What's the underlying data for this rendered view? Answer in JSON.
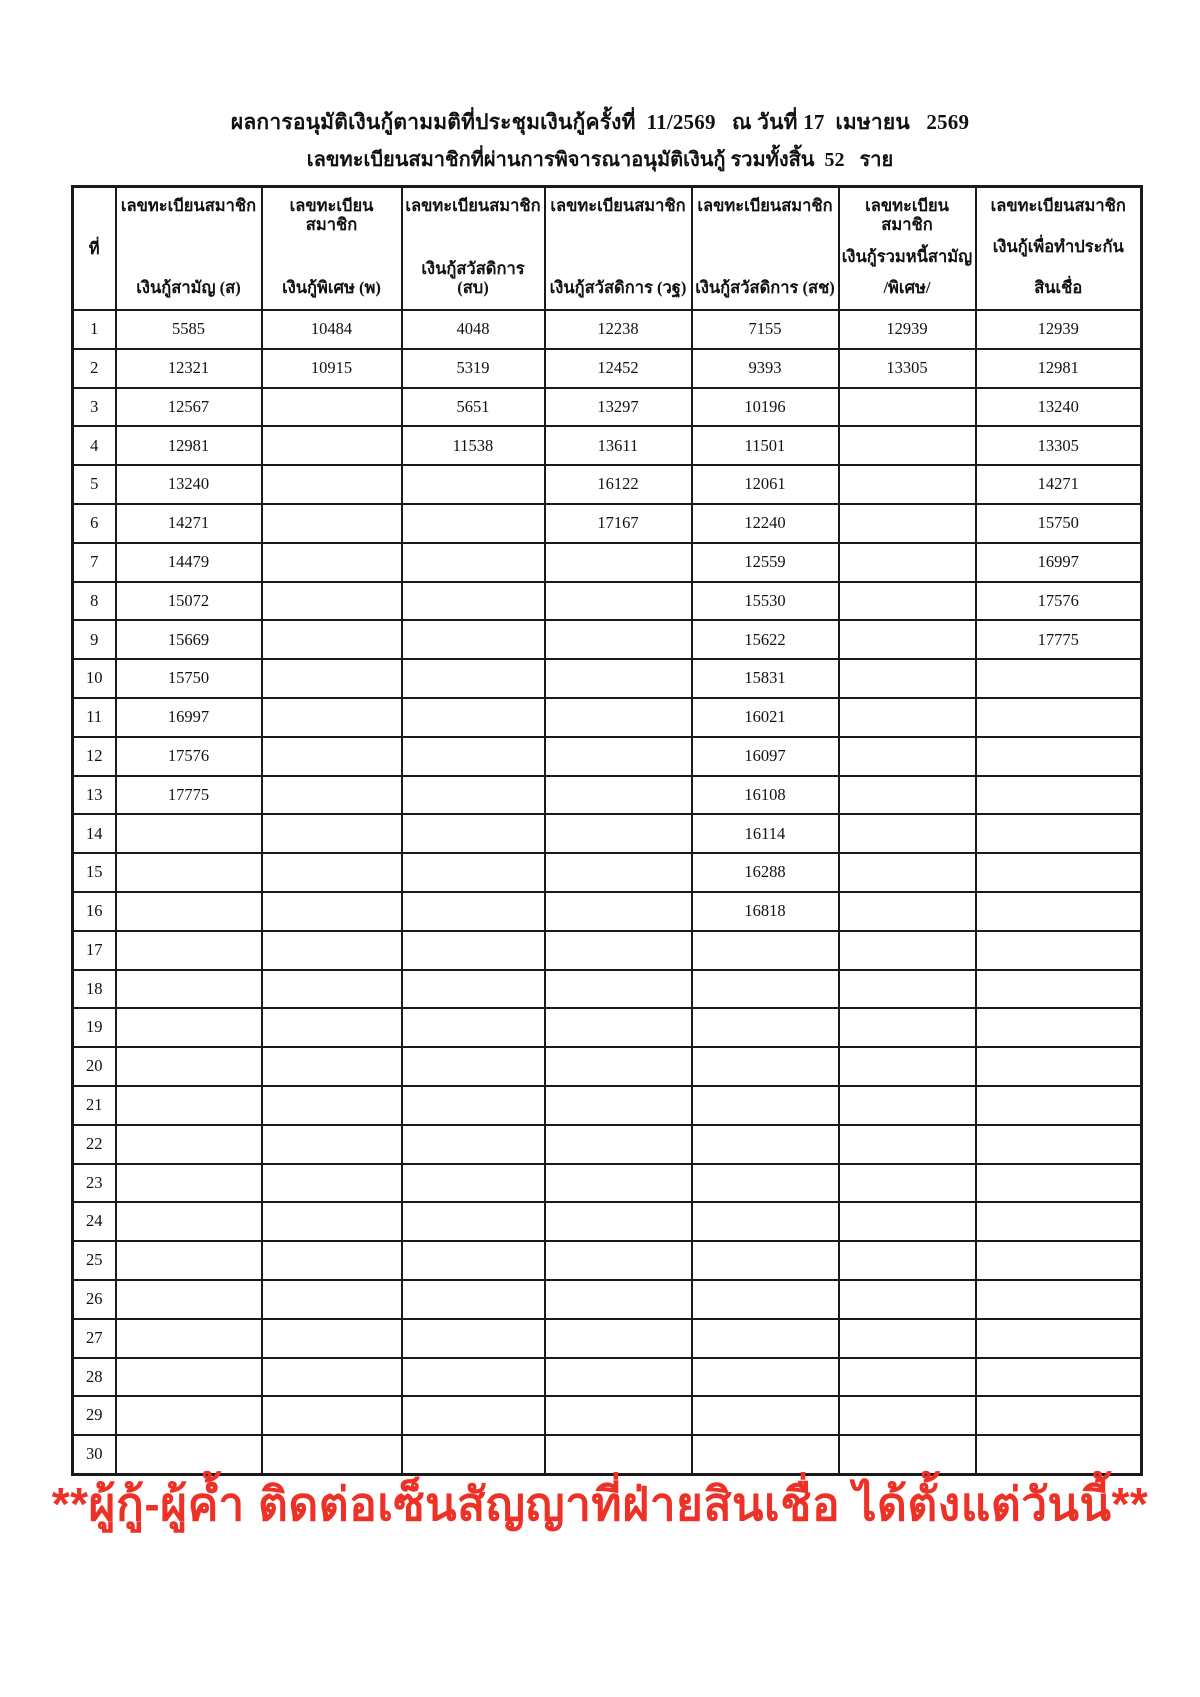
{
  "title": "ผลการอนุมัติเงินกู้ตามมติที่ประชุมเงินกู้ครั้งที่  11/2569   ณ วันที่ 17  เมษายน   2569",
  "subtitle": "เลขทะเบียนสมาชิกที่ผ่านการพิจารณาอนุมัติเงินกู้ รวมทั้งสิ้น  52   ราย",
  "table": {
    "no_column_header": "ที่",
    "columns": [
      {
        "line1": "เลขทะเบียนสมาชิก",
        "line2": "เงินกู้สามัญ (ส)",
        "line3": ""
      },
      {
        "line1": "เลขทะเบียนสมาชิก",
        "line2": "เงินกู้พิเศษ (พ)",
        "line3": ""
      },
      {
        "line1": "เลขทะเบียนสมาชิก",
        "line2": "เงินกู้สวัสดิการ (สบ)",
        "line3": ""
      },
      {
        "line1": "เลขทะเบียนสมาชิก",
        "line2": "เงินกู้สวัสดิการ (วฐ)",
        "line3": ""
      },
      {
        "line1": "เลขทะเบียนสมาชิก",
        "line2": "เงินกู้สวัสดิการ (สช)",
        "line3": ""
      },
      {
        "line1": "เลขทะเบียนสมาชิก",
        "line2": "เงินกู้รวมหนี้สามัญ",
        "line3": "/พิเศษ/"
      },
      {
        "line1": "เลขทะเบียนสมาชิก",
        "line2": "เงินกู้เพื่อทำประกัน",
        "line3": "สินเชื่อ"
      }
    ],
    "rows": [
      {
        "no": "1",
        "cells": [
          "5585",
          "10484",
          "4048",
          "12238",
          "7155",
          "12939",
          "12939"
        ]
      },
      {
        "no": "2",
        "cells": [
          "12321",
          "10915",
          "5319",
          "12452",
          "9393",
          "13305",
          "12981"
        ]
      },
      {
        "no": "3",
        "cells": [
          "12567",
          "",
          "5651",
          "13297",
          "10196",
          "",
          "13240"
        ]
      },
      {
        "no": "4",
        "cells": [
          "12981",
          "",
          "11538",
          "13611",
          "11501",
          "",
          "13305"
        ]
      },
      {
        "no": "5",
        "cells": [
          "13240",
          "",
          "",
          "16122",
          "12061",
          "",
          "14271"
        ]
      },
      {
        "no": "6",
        "cells": [
          "14271",
          "",
          "",
          "17167",
          "12240",
          "",
          "15750"
        ]
      },
      {
        "no": "7",
        "cells": [
          "14479",
          "",
          "",
          "",
          "12559",
          "",
          "16997"
        ]
      },
      {
        "no": "8",
        "cells": [
          "15072",
          "",
          "",
          "",
          "15530",
          "",
          "17576"
        ]
      },
      {
        "no": "9",
        "cells": [
          "15669",
          "",
          "",
          "",
          "15622",
          "",
          "17775"
        ]
      },
      {
        "no": "10",
        "cells": [
          "15750",
          "",
          "",
          "",
          "15831",
          "",
          ""
        ]
      },
      {
        "no": "11",
        "cells": [
          "16997",
          "",
          "",
          "",
          "16021",
          "",
          ""
        ]
      },
      {
        "no": "12",
        "cells": [
          "17576",
          "",
          "",
          "",
          "16097",
          "",
          ""
        ]
      },
      {
        "no": "13",
        "cells": [
          "17775",
          "",
          "",
          "",
          "16108",
          "",
          ""
        ]
      },
      {
        "no": "14",
        "cells": [
          "",
          "",
          "",
          "",
          "16114",
          "",
          ""
        ]
      },
      {
        "no": "15",
        "cells": [
          "",
          "",
          "",
          "",
          "16288",
          "",
          ""
        ]
      },
      {
        "no": "16",
        "cells": [
          "",
          "",
          "",
          "",
          "16818",
          "",
          ""
        ]
      },
      {
        "no": "17",
        "cells": [
          "",
          "",
          "",
          "",
          "",
          "",
          ""
        ]
      },
      {
        "no": "18",
        "cells": [
          "",
          "",
          "",
          "",
          "",
          "",
          ""
        ]
      },
      {
        "no": "19",
        "cells": [
          "",
          "",
          "",
          "",
          "",
          "",
          ""
        ]
      },
      {
        "no": "20",
        "cells": [
          "",
          "",
          "",
          "",
          "",
          "",
          ""
        ]
      },
      {
        "no": "21",
        "cells": [
          "",
          "",
          "",
          "",
          "",
          "",
          ""
        ]
      },
      {
        "no": "22",
        "cells": [
          "",
          "",
          "",
          "",
          "",
          "",
          ""
        ]
      },
      {
        "no": "23",
        "cells": [
          "",
          "",
          "",
          "",
          "",
          "",
          ""
        ]
      },
      {
        "no": "24",
        "cells": [
          "",
          "",
          "",
          "",
          "",
          "",
          ""
        ]
      },
      {
        "no": "25",
        "cells": [
          "",
          "",
          "",
          "",
          "",
          "",
          ""
        ]
      },
      {
        "no": "26",
        "cells": [
          "",
          "",
          "",
          "",
          "",
          "",
          ""
        ]
      },
      {
        "no": "27",
        "cells": [
          "",
          "",
          "",
          "",
          "",
          "",
          ""
        ]
      },
      {
        "no": "28",
        "cells": [
          "",
          "",
          "",
          "",
          "",
          "",
          ""
        ]
      },
      {
        "no": "29",
        "cells": [
          "",
          "",
          "",
          "",
          "",
          "",
          ""
        ]
      },
      {
        "no": "30",
        "cells": [
          "",
          "",
          "",
          "",
          "",
          "",
          ""
        ]
      }
    ]
  },
  "footer_notice": "**ผู้กู้-ผู้ค้ำ ติดต่อเซ็นสัญญาที่ฝ่ายสินเชื่อ ได้ตั้งแต่วันนี้**",
  "colors": {
    "notice_red": "#ee3126",
    "border": "#1a1a1a",
    "text": "#111111"
  }
}
